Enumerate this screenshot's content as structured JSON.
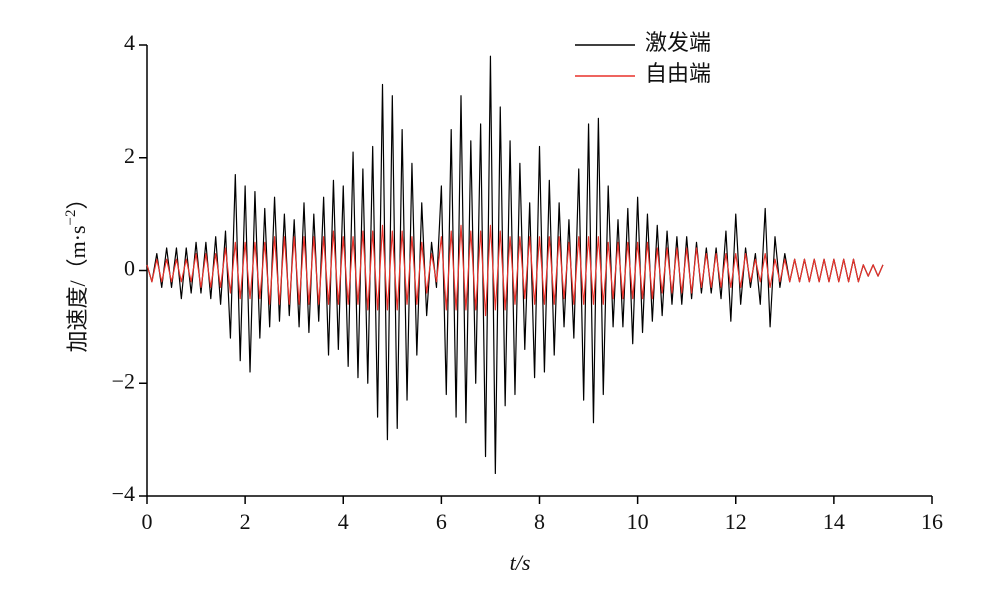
{
  "chart_data": {
    "type": "line",
    "x_label": "t/s",
    "y_label": {
      "text": "加速度/（m·s",
      "superscript": "−2",
      "suffix": "）"
    },
    "x": [
      0,
      0.1,
      0.2,
      0.3,
      0.4,
      0.5,
      0.6,
      0.7,
      0.8,
      0.9,
      1,
      1.1,
      1.2,
      1.3,
      1.4,
      1.5,
      1.6,
      1.7,
      1.8,
      1.9,
      2,
      2.1,
      2.2,
      2.3,
      2.4,
      2.5,
      2.6,
      2.7,
      2.8,
      2.9,
      3,
      3.1,
      3.2,
      3.3,
      3.4,
      3.5,
      3.6,
      3.7,
      3.8,
      3.9,
      4,
      4.1,
      4.2,
      4.3,
      4.4,
      4.5,
      4.6,
      4.7,
      4.8,
      4.9,
      5,
      5.1,
      5.2,
      5.3,
      5.4,
      5.5,
      5.6,
      5.7,
      5.8,
      5.9,
      6,
      6.1,
      6.2,
      6.3,
      6.4,
      6.5,
      6.6,
      6.7,
      6.8,
      6.9,
      7,
      7.1,
      7.2,
      7.3,
      7.4,
      7.5,
      7.6,
      7.7,
      7.8,
      7.9,
      8,
      8.1,
      8.2,
      8.3,
      8.4,
      8.5,
      8.6,
      8.7,
      8.8,
      8.9,
      9,
      9.1,
      9.2,
      9.3,
      9.4,
      9.5,
      9.6,
      9.7,
      9.8,
      9.9,
      10,
      10.1,
      10.2,
      10.3,
      10.4,
      10.5,
      10.6,
      10.7,
      10.8,
      10.9,
      11,
      11.1,
      11.2,
      11.3,
      11.4,
      11.5,
      11.6,
      11.7,
      11.8,
      11.9,
      12,
      12.1,
      12.2,
      12.3,
      12.4,
      12.5,
      12.6,
      12.7,
      12.8,
      12.9,
      13,
      13.1,
      13.2,
      13.3,
      13.4,
      13.5,
      13.6,
      13.7,
      13.8,
      13.9,
      14,
      14.1,
      14.2,
      14.3,
      14.4,
      14.5,
      14.6,
      14.7,
      14.8,
      14.9,
      15
    ],
    "series": [
      {
        "name": "激发端",
        "color": "#000000",
        "values": [
          0.1,
          -0.2,
          0.3,
          -0.3,
          0.4,
          -0.3,
          0.4,
          -0.5,
          0.4,
          -0.4,
          0.5,
          -0.4,
          0.5,
          -0.5,
          0.6,
          -0.6,
          0.7,
          -1.2,
          1.7,
          -1.6,
          1.5,
          -1.8,
          1.4,
          -1.2,
          1.1,
          -1.0,
          1.3,
          -0.9,
          1.0,
          -0.8,
          0.9,
          -1.0,
          1.2,
          -1.1,
          1.0,
          -0.9,
          1.3,
          -1.5,
          1.6,
          -1.4,
          1.5,
          -1.7,
          2.1,
          -1.9,
          1.8,
          -2.0,
          2.2,
          -2.6,
          3.3,
          -3.0,
          3.1,
          -2.8,
          2.5,
          -2.3,
          1.9,
          -1.5,
          1.2,
          -0.8,
          0.5,
          -0.3,
          1.5,
          -2.2,
          2.5,
          -2.6,
          3.1,
          -2.7,
          2.3,
          -2.0,
          2.6,
          -3.3,
          3.8,
          -3.6,
          2.9,
          -2.4,
          2.3,
          -2.2,
          1.9,
          -1.4,
          1.2,
          -1.9,
          2.2,
          -1.8,
          1.6,
          -1.5,
          1.2,
          -1.0,
          0.9,
          -1.2,
          1.8,
          -2.3,
          2.6,
          -2.7,
          2.7,
          -2.2,
          1.5,
          -1.0,
          0.9,
          -1.0,
          1.1,
          -1.3,
          1.3,
          -1.1,
          1.0,
          -0.9,
          0.8,
          -0.8,
          0.7,
          -0.6,
          0.6,
          -0.6,
          0.6,
          -0.5,
          0.5,
          -0.4,
          0.4,
          -0.4,
          0.4,
          -0.5,
          0.7,
          -0.9,
          1.0,
          -0.6,
          0.4,
          -0.3,
          0.3,
          -0.6,
          1.1,
          -1.0,
          0.6,
          -0.3,
          0.3,
          -0.2,
          0.2,
          -0.2,
          0.2,
          -0.2,
          0.2,
          -0.2,
          0.2,
          -0.2,
          0.2,
          -0.2,
          0.2,
          -0.2,
          0.2,
          -0.2,
          0.1,
          -0.1,
          0.1,
          -0.1,
          0.1
        ]
      },
      {
        "name": "自由端",
        "color": "#e8312a",
        "values": [
          0.1,
          -0.2,
          0.2,
          -0.2,
          0.2,
          -0.2,
          0.2,
          -0.2,
          0.2,
          -0.2,
          0.3,
          -0.3,
          0.3,
          -0.3,
          0.3,
          -0.3,
          0.4,
          -0.4,
          0.5,
          -0.5,
          0.5,
          -0.5,
          0.5,
          -0.5,
          0.5,
          -0.6,
          0.6,
          -0.6,
          0.6,
          -0.6,
          0.6,
          -0.6,
          0.6,
          -0.6,
          0.6,
          -0.6,
          0.6,
          -0.6,
          0.7,
          -0.6,
          0.6,
          -0.6,
          0.6,
          -0.6,
          0.7,
          -0.7,
          0.7,
          -0.7,
          0.8,
          -0.7,
          0.7,
          -0.7,
          0.7,
          -0.6,
          0.6,
          -0.6,
          0.5,
          -0.4,
          0.3,
          -0.2,
          0.6,
          -0.7,
          0.7,
          -0.7,
          0.8,
          -0.7,
          0.7,
          -0.7,
          0.7,
          -0.8,
          0.8,
          -0.7,
          0.7,
          -0.7,
          0.6,
          -0.6,
          0.6,
          -0.5,
          0.6,
          -0.6,
          0.6,
          -0.6,
          0.6,
          -0.6,
          0.6,
          -0.5,
          0.5,
          -0.6,
          0.6,
          -0.6,
          0.6,
          -0.6,
          0.6,
          -0.6,
          0.5,
          -0.5,
          0.5,
          -0.5,
          0.5,
          -0.5,
          0.5,
          -0.5,
          0.5,
          -0.5,
          0.4,
          -0.4,
          0.4,
          -0.4,
          0.4,
          -0.4,
          0.4,
          -0.4,
          0.4,
          -0.3,
          0.3,
          -0.3,
          0.3,
          -0.3,
          0.3,
          -0.3,
          0.3,
          -0.3,
          0.3,
          -0.2,
          0.2,
          -0.2,
          0.3,
          -0.3,
          0.2,
          -0.2,
          0.2,
          -0.2,
          0.2,
          -0.2,
          0.2,
          -0.2,
          0.2,
          -0.2,
          0.2,
          -0.2,
          0.2,
          -0.2,
          0.2,
          -0.2,
          0.2,
          -0.2,
          0.1,
          -0.1,
          0.1,
          -0.1,
          0.1
        ]
      }
    ],
    "xlim": [
      0,
      16
    ],
    "xticks": [
      0,
      2,
      4,
      6,
      8,
      10,
      12,
      14,
      16
    ],
    "ylim": [
      -4,
      4
    ],
    "yticks": [
      {
        "value": -4,
        "label": "−4"
      },
      {
        "value": -2,
        "label": "−2"
      },
      0,
      2,
      4
    ],
    "grid": false,
    "legend": "upper center"
  }
}
